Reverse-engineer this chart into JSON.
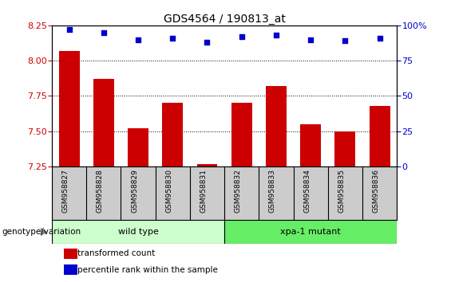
{
  "title": "GDS4564 / 190813_at",
  "samples": [
    "GSM958827",
    "GSM958828",
    "GSM958829",
    "GSM958830",
    "GSM958831",
    "GSM958832",
    "GSM958833",
    "GSM958834",
    "GSM958835",
    "GSM958836"
  ],
  "bar_values": [
    8.07,
    7.87,
    7.52,
    7.7,
    7.265,
    7.7,
    7.82,
    7.55,
    7.5,
    7.68
  ],
  "percentile_values": [
    97,
    95,
    90,
    91,
    88,
    92,
    93,
    90,
    89,
    91
  ],
  "bar_color": "#cc0000",
  "dot_color": "#0000cc",
  "ylim_left": [
    7.25,
    8.25
  ],
  "ylim_right": [
    0,
    100
  ],
  "yticks_left": [
    7.25,
    7.5,
    7.75,
    8.0,
    8.25
  ],
  "yticks_right": [
    0,
    25,
    50,
    75,
    100
  ],
  "groups": [
    {
      "label": "wild type",
      "start": 0,
      "end": 5,
      "color": "#ccffcc"
    },
    {
      "label": "xpa-1 mutant",
      "start": 5,
      "end": 10,
      "color": "#66ee66"
    }
  ],
  "group_label": "genotype/variation",
  "legend_bar_label": "transformed count",
  "legend_dot_label": "percentile rank within the sample",
  "title_fontsize": 10,
  "tick_fontsize": 8,
  "bar_width": 0.6,
  "grid_color": "#000000",
  "background_color": "#ffffff",
  "sample_area_color": "#cccccc"
}
